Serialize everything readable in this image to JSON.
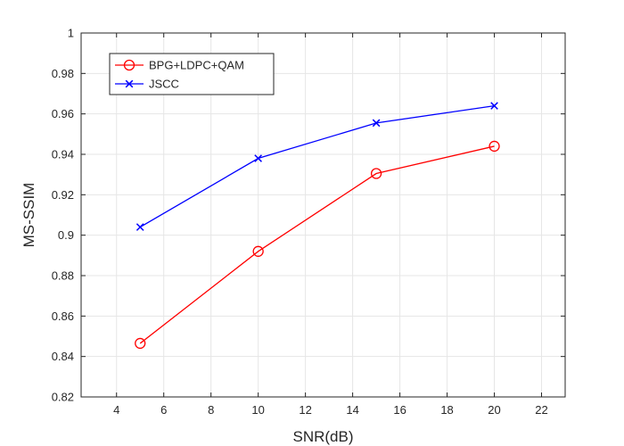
{
  "chart_data": {
    "type": "line",
    "xlabel": "SNR(dB)",
    "ylabel": "MS-SSIM",
    "xlim": [
      2.5,
      23
    ],
    "ylim": [
      0.82,
      1.0
    ],
    "x_ticks": [
      "4",
      "6",
      "8",
      "10",
      "12",
      "14",
      "16",
      "18",
      "20",
      "22"
    ],
    "y_ticks": [
      "0.82",
      "0.84",
      "0.86",
      "0.88",
      "0.9",
      "0.92",
      "0.94",
      "0.96",
      "0.98",
      "1"
    ],
    "grid": true,
    "legend_position": "top-left",
    "series": [
      {
        "name": "BPG+LDPC+QAM",
        "color": "#ff0000",
        "marker": "circle",
        "x": [
          5,
          10,
          15,
          20
        ],
        "y": [
          0.8465,
          0.892,
          0.9305,
          0.944
        ]
      },
      {
        "name": "JSCC",
        "color": "#0000ff",
        "marker": "x",
        "x": [
          5,
          10,
          15,
          20
        ],
        "y": [
          0.904,
          0.938,
          0.9555,
          0.964
        ]
      }
    ]
  }
}
